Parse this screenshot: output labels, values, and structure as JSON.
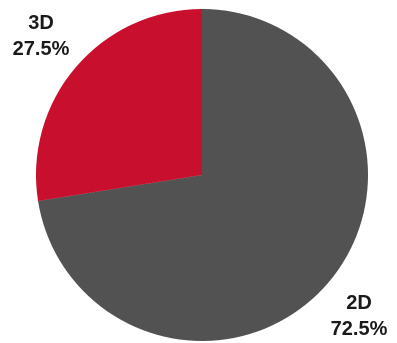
{
  "chart_data": {
    "type": "pie",
    "slices": [
      {
        "label": "2D",
        "value": 72.5,
        "value_label": "72.5%",
        "color": "#525252"
      },
      {
        "label": "3D",
        "value": 27.5,
        "value_label": "27.5%",
        "color": "#c8102e"
      }
    ],
    "title": "",
    "legend": "none",
    "start_angle": "12 o'clock",
    "direction": "clockwise"
  }
}
